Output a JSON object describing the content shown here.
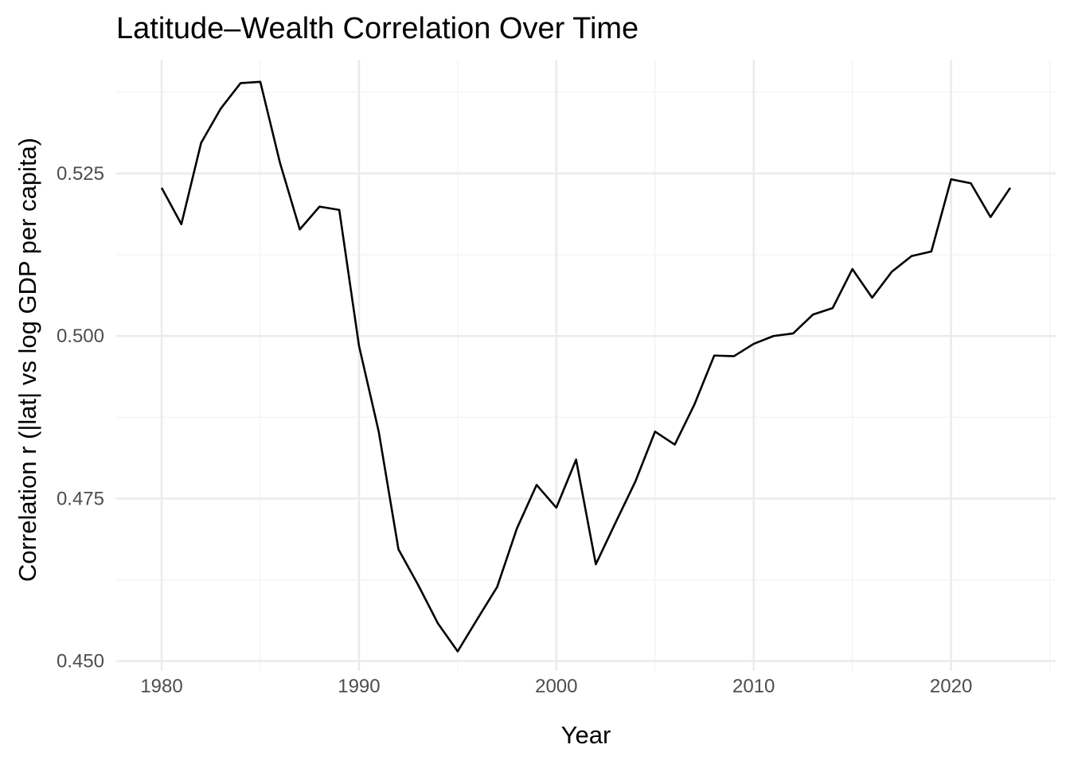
{
  "chart_data": {
    "type": "line",
    "title": "Latitude–Wealth Correlation Over Time",
    "xlabel": "Year",
    "ylabel": "Correlation r (|lat| vs log GDP per capita)",
    "xlim": [
      1977.7,
      2025.3
    ],
    "ylim": [
      0.4485,
      0.5425
    ],
    "x_ticks": [
      1980,
      1990,
      2000,
      2010,
      2020
    ],
    "x_tick_labels": [
      "1980",
      "1990",
      "2000",
      "2010",
      "2020"
    ],
    "x_minor_ticks": [
      1985,
      1995,
      2005,
      2015,
      2025
    ],
    "y_ticks": [
      0.45,
      0.475,
      0.5,
      0.525
    ],
    "y_tick_labels": [
      "0.450",
      "0.475",
      "0.500",
      "0.525"
    ],
    "y_minor_ticks": [
      0.4625,
      0.4875,
      0.5125,
      0.5375
    ],
    "grid": true,
    "legend": "none",
    "colors": {
      "line": "#000000",
      "grid_major": "#ebebeb",
      "grid_minor": "#f3f3f3",
      "tick_text": "#4d4d4d"
    },
    "x": [
      1980,
      1981,
      1982,
      1983,
      1984,
      1985,
      1986,
      1987,
      1988,
      1989,
      1990,
      1991,
      1992,
      1993,
      1994,
      1995,
      1996,
      1997,
      1998,
      1999,
      2000,
      2001,
      2002,
      2003,
      2004,
      2005,
      2006,
      2007,
      2008,
      2009,
      2010,
      2011,
      2012,
      2013,
      2014,
      2015,
      2016,
      2017,
      2018,
      2019,
      2020,
      2021,
      2022,
      2023
    ],
    "y": [
      0.5228,
      0.5172,
      0.5297,
      0.535,
      0.5389,
      0.5391,
      0.5266,
      0.5164,
      0.5199,
      0.5194,
      0.4985,
      0.4853,
      0.4672,
      0.4617,
      0.4558,
      0.4515,
      0.4565,
      0.4614,
      0.4704,
      0.4771,
      0.4736,
      0.481,
      0.4649,
      0.4713,
      0.4776,
      0.4853,
      0.4833,
      0.4895,
      0.497,
      0.4969,
      0.4988,
      0.5,
      0.5004,
      0.5033,
      0.5043,
      0.5103,
      0.5059,
      0.5099,
      0.5123,
      0.513,
      0.5241,
      0.5235,
      0.5183,
      0.5228
    ]
  }
}
